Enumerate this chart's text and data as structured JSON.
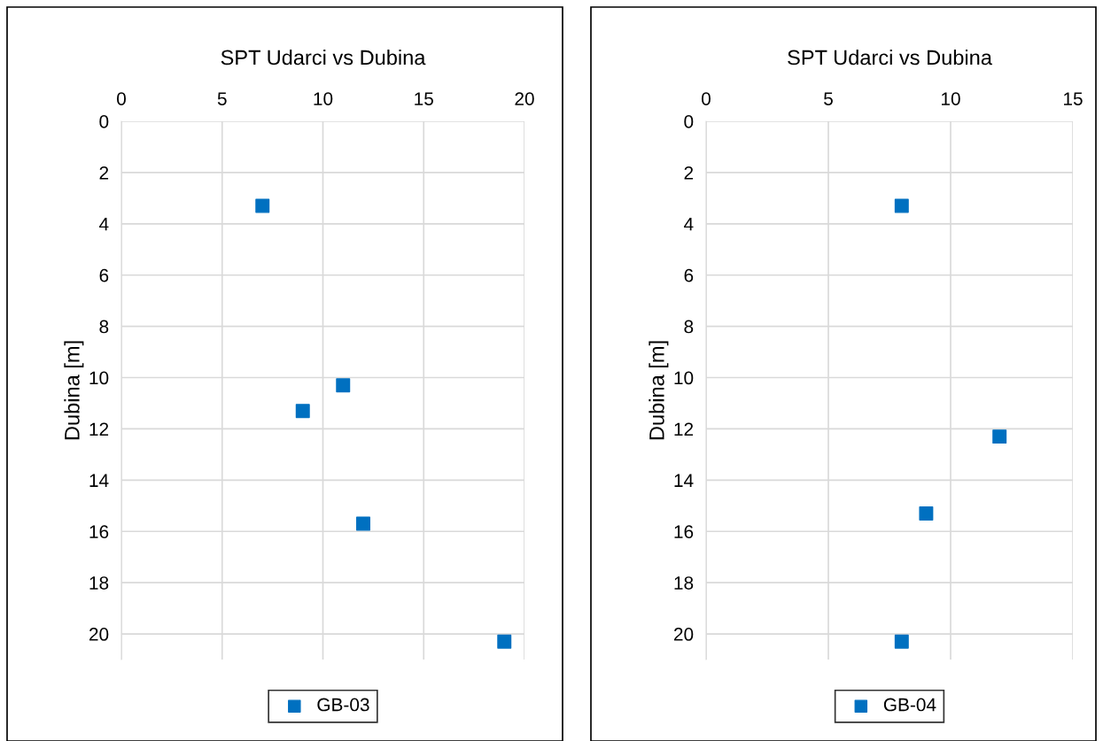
{
  "chart_data": [
    {
      "type": "scatter",
      "title": "SPT Udarci vs Dubina",
      "ylabel": "Dubina [m]",
      "xlim": [
        0,
        20
      ],
      "xticks": [
        0,
        5,
        10,
        15,
        20
      ],
      "ylim": [
        21,
        0
      ],
      "yticks": [
        0,
        2,
        4,
        6,
        8,
        10,
        12,
        14,
        16,
        18,
        20
      ],
      "grid": true,
      "legend": "bottom",
      "marker": "square",
      "series": [
        {
          "name": "GB-03",
          "color": "#0070c0",
          "x": [
            7,
            11,
            9,
            12,
            19
          ],
          "values": [
            3.3,
            10.3,
            11.3,
            15.7,
            20.3
          ]
        }
      ]
    },
    {
      "type": "scatter",
      "title": "SPT Udarci vs Dubina",
      "ylabel": "Dubina [m]",
      "xlim": [
        0,
        15
      ],
      "xticks": [
        0,
        5,
        10,
        15
      ],
      "ylim": [
        21,
        0
      ],
      "yticks": [
        0,
        2,
        4,
        6,
        8,
        10,
        12,
        14,
        16,
        18,
        20
      ],
      "grid": true,
      "legend": "bottom",
      "marker": "square",
      "series": [
        {
          "name": "GB-04",
          "color": "#0070c0",
          "x": [
            8,
            12,
            9,
            8
          ],
          "values": [
            3.3,
            12.3,
            15.3,
            20.3
          ]
        }
      ]
    }
  ]
}
